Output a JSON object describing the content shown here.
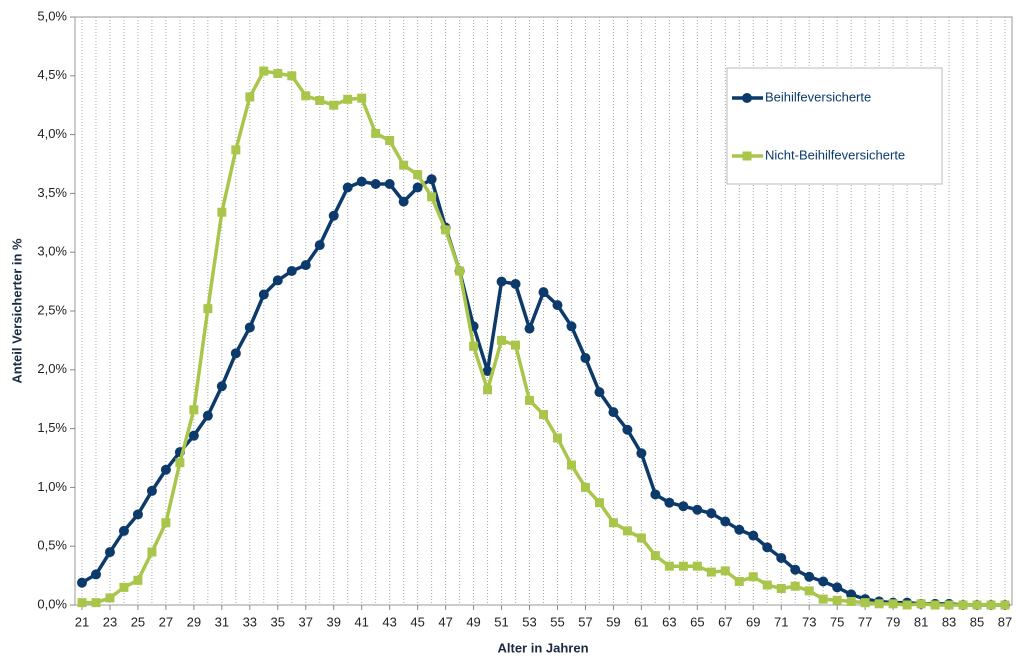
{
  "chart_data": {
    "type": "line",
    "x_label": "Alter in Jahren",
    "y_label": "Anteil Versicherter in %",
    "x": [
      21,
      22,
      23,
      24,
      25,
      26,
      27,
      28,
      29,
      30,
      31,
      32,
      33,
      34,
      35,
      36,
      37,
      38,
      39,
      40,
      41,
      42,
      43,
      44,
      45,
      46,
      47,
      48,
      49,
      50,
      51,
      52,
      53,
      54,
      55,
      56,
      57,
      58,
      59,
      60,
      61,
      62,
      63,
      64,
      65,
      66,
      67,
      68,
      69,
      70,
      71,
      72,
      73,
      74,
      75,
      76,
      77,
      78,
      79,
      80,
      81,
      82,
      83,
      84,
      85,
      86,
      87
    ],
    "series": [
      {
        "name": "Beihilfeversicherte",
        "color": "#0b3a6b",
        "marker": "circle",
        "values": [
          0.19,
          0.26,
          0.45,
          0.63,
          0.77,
          0.97,
          1.15,
          1.3,
          1.44,
          1.61,
          1.86,
          2.14,
          2.36,
          2.64,
          2.76,
          2.84,
          2.89,
          3.06,
          3.31,
          3.55,
          3.6,
          3.58,
          3.58,
          3.43,
          3.55,
          3.62,
          3.21,
          2.84,
          2.37,
          1.99,
          2.75,
          2.73,
          2.35,
          2.66,
          2.55,
          2.37,
          2.1,
          1.81,
          1.64,
          1.49,
          1.29,
          0.94,
          0.87,
          0.84,
          0.81,
          0.78,
          0.71,
          0.64,
          0.59,
          0.49,
          0.4,
          0.3,
          0.24,
          0.2,
          0.15,
          0.09,
          0.05,
          0.03,
          0.02,
          0.02,
          0.01,
          0.01,
          0.01,
          0.0,
          0.0,
          0.0,
          0.0
        ]
      },
      {
        "name": "Nicht-Beihilfeversicherte",
        "color": "#a9c54a",
        "marker": "square",
        "values": [
          0.02,
          0.02,
          0.06,
          0.15,
          0.21,
          0.45,
          0.7,
          1.21,
          1.66,
          2.52,
          3.34,
          3.87,
          4.32,
          4.54,
          4.52,
          4.5,
          4.33,
          4.29,
          4.25,
          4.3,
          4.31,
          4.01,
          3.95,
          3.74,
          3.66,
          3.47,
          3.19,
          2.84,
          2.2,
          1.83,
          2.25,
          2.21,
          1.74,
          1.62,
          1.42,
          1.19,
          1.0,
          0.87,
          0.7,
          0.63,
          0.57,
          0.42,
          0.33,
          0.33,
          0.33,
          0.28,
          0.29,
          0.2,
          0.24,
          0.17,
          0.14,
          0.16,
          0.12,
          0.05,
          0.04,
          0.03,
          0.02,
          0.01,
          0.01,
          0.0,
          0.01,
          0.0,
          0.0,
          0.0,
          0.0,
          0.0,
          0.0
        ]
      }
    ],
    "xlim": [
      20.5,
      87.5
    ],
    "xticks": [
      21,
      23,
      25,
      27,
      29,
      31,
      33,
      35,
      37,
      39,
      41,
      43,
      45,
      47,
      49,
      51,
      53,
      55,
      57,
      59,
      61,
      63,
      65,
      67,
      69,
      71,
      73,
      75,
      77,
      79,
      81,
      83,
      85,
      87
    ],
    "ylim": [
      0,
      5
    ],
    "yticks": [
      {
        "value": 0,
        "label": "0,0%"
      },
      {
        "value": 0.5,
        "label": "0,5%"
      },
      {
        "value": 1,
        "label": "1,0%"
      },
      {
        "value": 1.5,
        "label": "1,5%"
      },
      {
        "value": 2,
        "label": "2,0%"
      },
      {
        "value": 2.5,
        "label": "2,5%"
      },
      {
        "value": 3,
        "label": "3,0%"
      },
      {
        "value": 3.5,
        "label": "3,5%"
      },
      {
        "value": 4,
        "label": "4,0%"
      },
      {
        "value": 4.5,
        "label": "4,5%"
      },
      {
        "value": 5,
        "label": "5,0%"
      }
    ],
    "grid": "x",
    "legend": "top-right"
  }
}
